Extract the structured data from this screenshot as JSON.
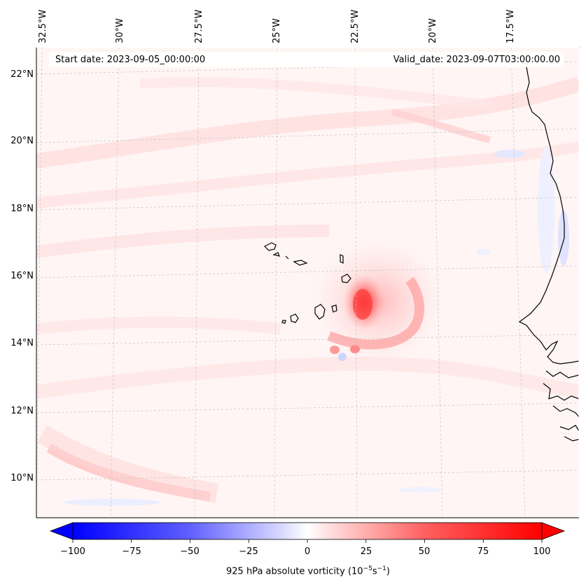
{
  "map": {
    "start_date": "Start date: 2023-09-05_00:00:00",
    "valid_date": "Valid_date: 2023-09-07T03:00:00.00",
    "lon_labels": [
      "32.5°W",
      "30°W",
      "27.5°W",
      "25°W",
      "22.5°W",
      "20°W",
      "17.5°W"
    ],
    "lat_labels": [
      "22°N",
      "20°N",
      "18°N",
      "16°N",
      "14°N",
      "12°N",
      "10°N"
    ],
    "field": "925 hPa absolute vorticity",
    "vortex_center": {
      "lon": "22.7°W",
      "lat": "15.0°N"
    },
    "colors": {
      "positive": "#ff0000",
      "negative": "#0000ff",
      "neutral": "#ffffff",
      "coast": "#000000"
    }
  },
  "colorbar": {
    "ticks": [
      "−100",
      "−75",
      "−50",
      "−25",
      "0",
      "25",
      "50",
      "75",
      "100"
    ],
    "tick_values": [
      -100,
      -75,
      -50,
      -25,
      0,
      25,
      50,
      75,
      100
    ],
    "range": [
      -100,
      100
    ],
    "label_main": "925 hPa absolute vorticity (10",
    "label_exp1": "−5",
    "label_mid": "s",
    "label_exp2": "−1",
    "label_end": ")"
  }
}
